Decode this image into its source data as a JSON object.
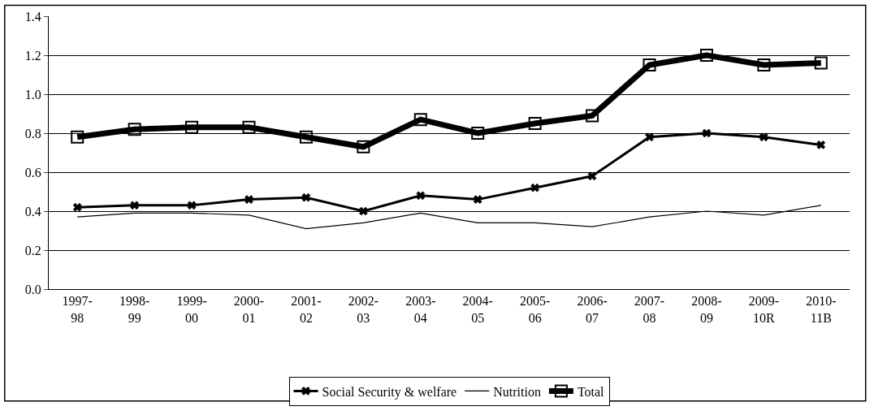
{
  "chart_data": {
    "type": "line",
    "categories": [
      "1997-\n98",
      "1998-\n99",
      "1999-\n00",
      "2000-\n01",
      "2001-\n02",
      "2002-\n03",
      "2003-\n04",
      "2004-\n05",
      "2005-\n06",
      "2006-\n07",
      "2007-\n08",
      "2008-\n09",
      "2009-\n10R",
      "2010-\n11B"
    ],
    "series": [
      {
        "name": "Social Security & welfare",
        "color": "#000000",
        "marker": "cross",
        "values": [
          0.42,
          0.43,
          0.43,
          0.46,
          0.47,
          0.4,
          0.48,
          0.46,
          0.52,
          0.58,
          0.78,
          0.8,
          0.78,
          0.74
        ]
      },
      {
        "name": "Nutrition",
        "color": "#000000",
        "marker": "none",
        "values": [
          0.37,
          0.39,
          0.39,
          0.38,
          0.31,
          0.34,
          0.39,
          0.34,
          0.34,
          0.32,
          0.37,
          0.4,
          0.38,
          0.43
        ]
      },
      {
        "name": "Total",
        "color": "#000000",
        "marker": "square",
        "values": [
          0.78,
          0.82,
          0.83,
          0.83,
          0.78,
          0.73,
          0.87,
          0.8,
          0.85,
          0.89,
          1.15,
          1.2,
          1.15,
          1.16
        ]
      }
    ],
    "ylim": [
      0,
      1.4
    ],
    "yticks": [
      {
        "value": 0,
        "label": "0.0"
      },
      0.2,
      0.4,
      0.6,
      0.8,
      {
        "value": 1,
        "label": "1.0"
      },
      1.2,
      1.4
    ],
    "grid": "y",
    "legend": "bottom",
    "line_style": "solid"
  }
}
